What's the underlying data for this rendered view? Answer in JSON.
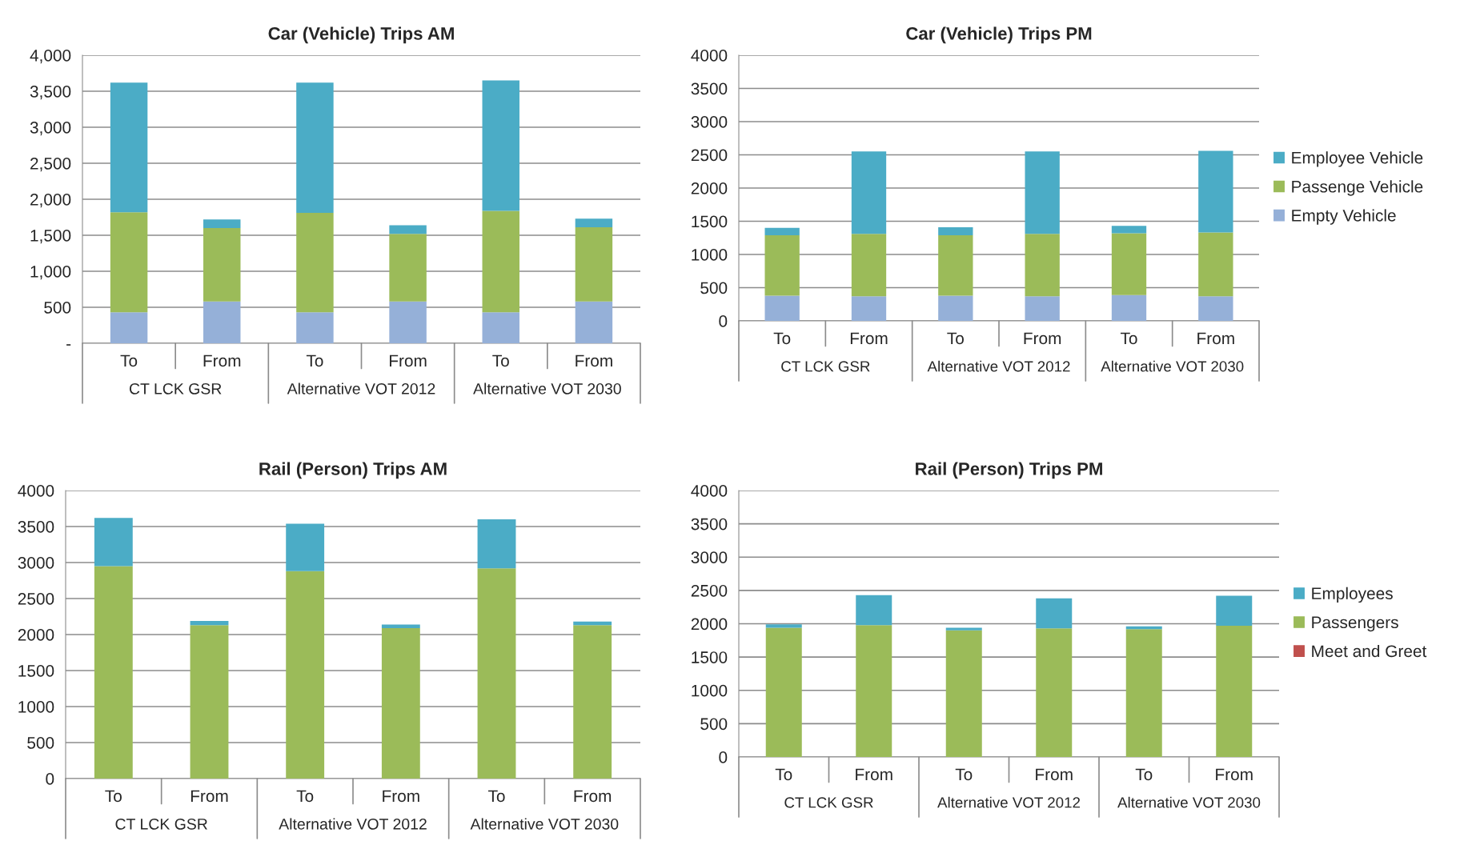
{
  "chart_data": [
    {
      "type": "bar",
      "title": "Car (Vehicle) Trips AM",
      "stacked": true,
      "grid": "y",
      "legend": false,
      "categories": [
        "To",
        "From",
        "To",
        "From",
        "To",
        "From"
      ],
      "annotations": [
        "CT LCK GSR",
        "Alternative VOT 2012",
        "Alternative VOT 2030"
      ],
      "ylim": [
        0,
        4000
      ],
      "yticks": [
        {
          "value": 0,
          "label": "-"
        },
        {
          "value": 500,
          "label": "500"
        },
        {
          "value": 1000,
          "label": "1,000"
        },
        {
          "value": 1500,
          "label": "1,500"
        },
        {
          "value": 2000,
          "label": "2,000"
        },
        {
          "value": 2500,
          "label": "2,500"
        },
        {
          "value": 3000,
          "label": "3,000"
        },
        {
          "value": 3500,
          "label": "3,500"
        },
        {
          "value": 4000,
          "label": "4,000"
        }
      ],
      "series": [
        {
          "color": "#95b0d8",
          "values": [
            430,
            580,
            430,
            580,
            430,
            580
          ]
        },
        {
          "color": "#9bbb59",
          "values": [
            1390,
            1020,
            1380,
            940,
            1410,
            1030
          ]
        },
        {
          "color": "#4bacc6",
          "values": [
            1800,
            120,
            1810,
            120,
            1810,
            120
          ]
        }
      ]
    },
    {
      "type": "bar",
      "title": "Car (Vehicle) Trips PM",
      "stacked": true,
      "grid": "y",
      "legend": "right",
      "categories": [
        "To",
        "From",
        "To",
        "From",
        "To",
        "From"
      ],
      "annotations": [
        "CT LCK GSR",
        "Alternative VOT 2012",
        "Alternative VOT 2030"
      ],
      "ylim": [
        0,
        4000
      ],
      "yticks": [
        0,
        500,
        1000,
        1500,
        2000,
        2500,
        3000,
        3500,
        4000
      ],
      "series": [
        {
          "name": "Empty Vehicle",
          "color": "#95b0d8",
          "values": [
            380,
            370,
            380,
            370,
            390,
            370
          ]
        },
        {
          "name": "Passenge Vehicle",
          "color": "#9bbb59",
          "values": [
            910,
            940,
            910,
            940,
            930,
            960
          ]
        },
        {
          "name": "Employee Vehicle",
          "color": "#4bacc6",
          "values": [
            110,
            1240,
            120,
            1240,
            110,
            1230
          ]
        }
      ]
    },
    {
      "type": "bar",
      "title": "Rail (Person) Trips AM",
      "stacked": true,
      "grid": "y",
      "legend": false,
      "categories": [
        "To",
        "From",
        "To",
        "From",
        "To",
        "From"
      ],
      "annotations": [
        "CT LCK GSR",
        "Alternative VOT 2012",
        "Alternative VOT 2030"
      ],
      "ylim": [
        0,
        4000
      ],
      "yticks": [
        0,
        500,
        1000,
        1500,
        2000,
        2500,
        3000,
        3500,
        4000
      ],
      "series": [
        {
          "color": "#9bbb59",
          "values": [
            2950,
            2130,
            2880,
            2090,
            2920,
            2130
          ]
        },
        {
          "color": "#4bacc6",
          "values": [
            670,
            60,
            660,
            50,
            680,
            50
          ]
        }
      ]
    },
    {
      "type": "bar",
      "title": "Rail (Person) Trips PM",
      "stacked": true,
      "grid": "y",
      "legend": "right",
      "categories": [
        "To",
        "From",
        "To",
        "From",
        "To",
        "From"
      ],
      "annotations": [
        "CT LCK GSR",
        "Alternative VOT 2012",
        "Alternative VOT 2030"
      ],
      "ylim": [
        0,
        4000
      ],
      "yticks": [
        0,
        500,
        1000,
        1500,
        2000,
        2500,
        3000,
        3500,
        4000
      ],
      "series": [
        {
          "name": "Meet and Greet",
          "color": "#c0504d",
          "values": [
            0,
            0,
            0,
            0,
            0,
            0
          ]
        },
        {
          "name": "Passengers",
          "color": "#9bbb59",
          "values": [
            1940,
            1980,
            1900,
            1930,
            1920,
            1970
          ]
        },
        {
          "name": "Employees",
          "color": "#4bacc6",
          "values": [
            50,
            450,
            40,
            450,
            40,
            450
          ]
        }
      ]
    }
  ]
}
